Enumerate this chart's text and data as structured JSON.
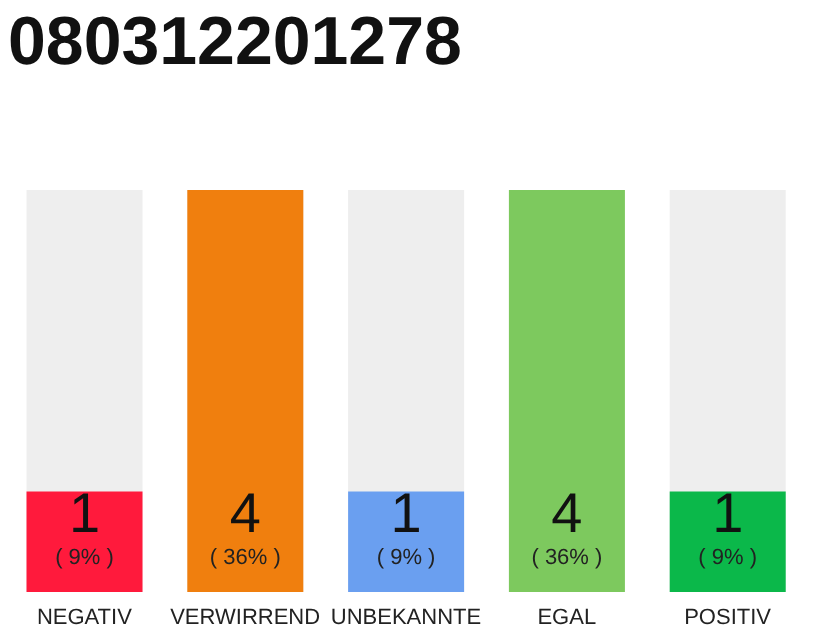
{
  "chart_data": {
    "type": "bar",
    "title": "080312201278",
    "categories": [
      "NEGATIV",
      "VERWIRREND",
      "UNBEKANNTE",
      "EGAL",
      "POSITIV"
    ],
    "values": [
      1,
      4,
      1,
      4,
      1
    ],
    "colors": [
      "#ff1a3c",
      "#f07f0e",
      "#6a9ff0",
      "#7dc95e",
      "#0bb84a"
    ],
    "data_labels": true,
    "annotations": [
      "( 9% )",
      "( 36% )",
      "( 9% )",
      "( 36% )",
      "( 9% )"
    ]
  }
}
